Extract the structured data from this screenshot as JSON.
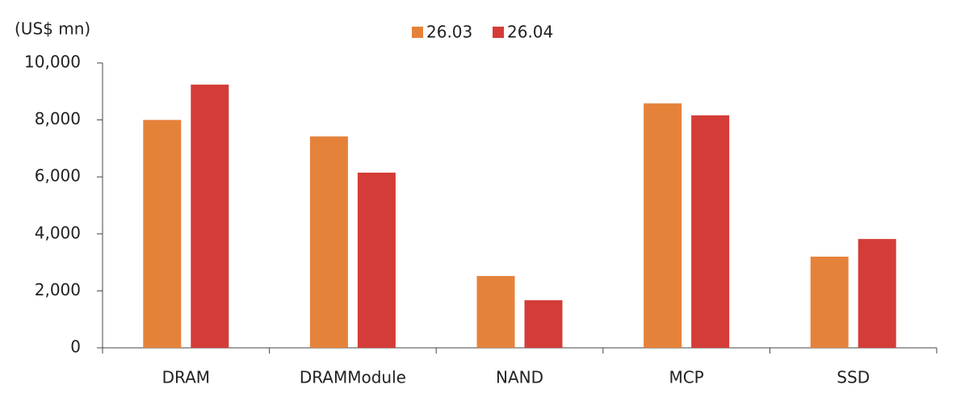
{
  "chart_data": {
    "type": "bar",
    "unit_label": "(US$ mn)",
    "categories": [
      "DRAM",
      "DRAMModule",
      "NAND",
      "MCP",
      "SSD"
    ],
    "series": [
      {
        "name": "26.03",
        "color": "#e5823a",
        "values": [
          8000,
          7420,
          2520,
          8580,
          3200
        ]
      },
      {
        "name": "26.04",
        "color": "#d43c38",
        "values": [
          9240,
          6150,
          1670,
          8160,
          3820
        ]
      }
    ],
    "ylim": [
      0,
      10000
    ],
    "yticks": [
      0,
      {
        "value": 2000,
        "label": "2,000"
      },
      {
        "value": 4000,
        "label": "4,000"
      },
      {
        "value": 6000,
        "label": "6,000"
      },
      {
        "value": 8000,
        "label": "8,000"
      },
      {
        "value": 10000,
        "label": "10,000"
      }
    ],
    "legend": "top"
  }
}
